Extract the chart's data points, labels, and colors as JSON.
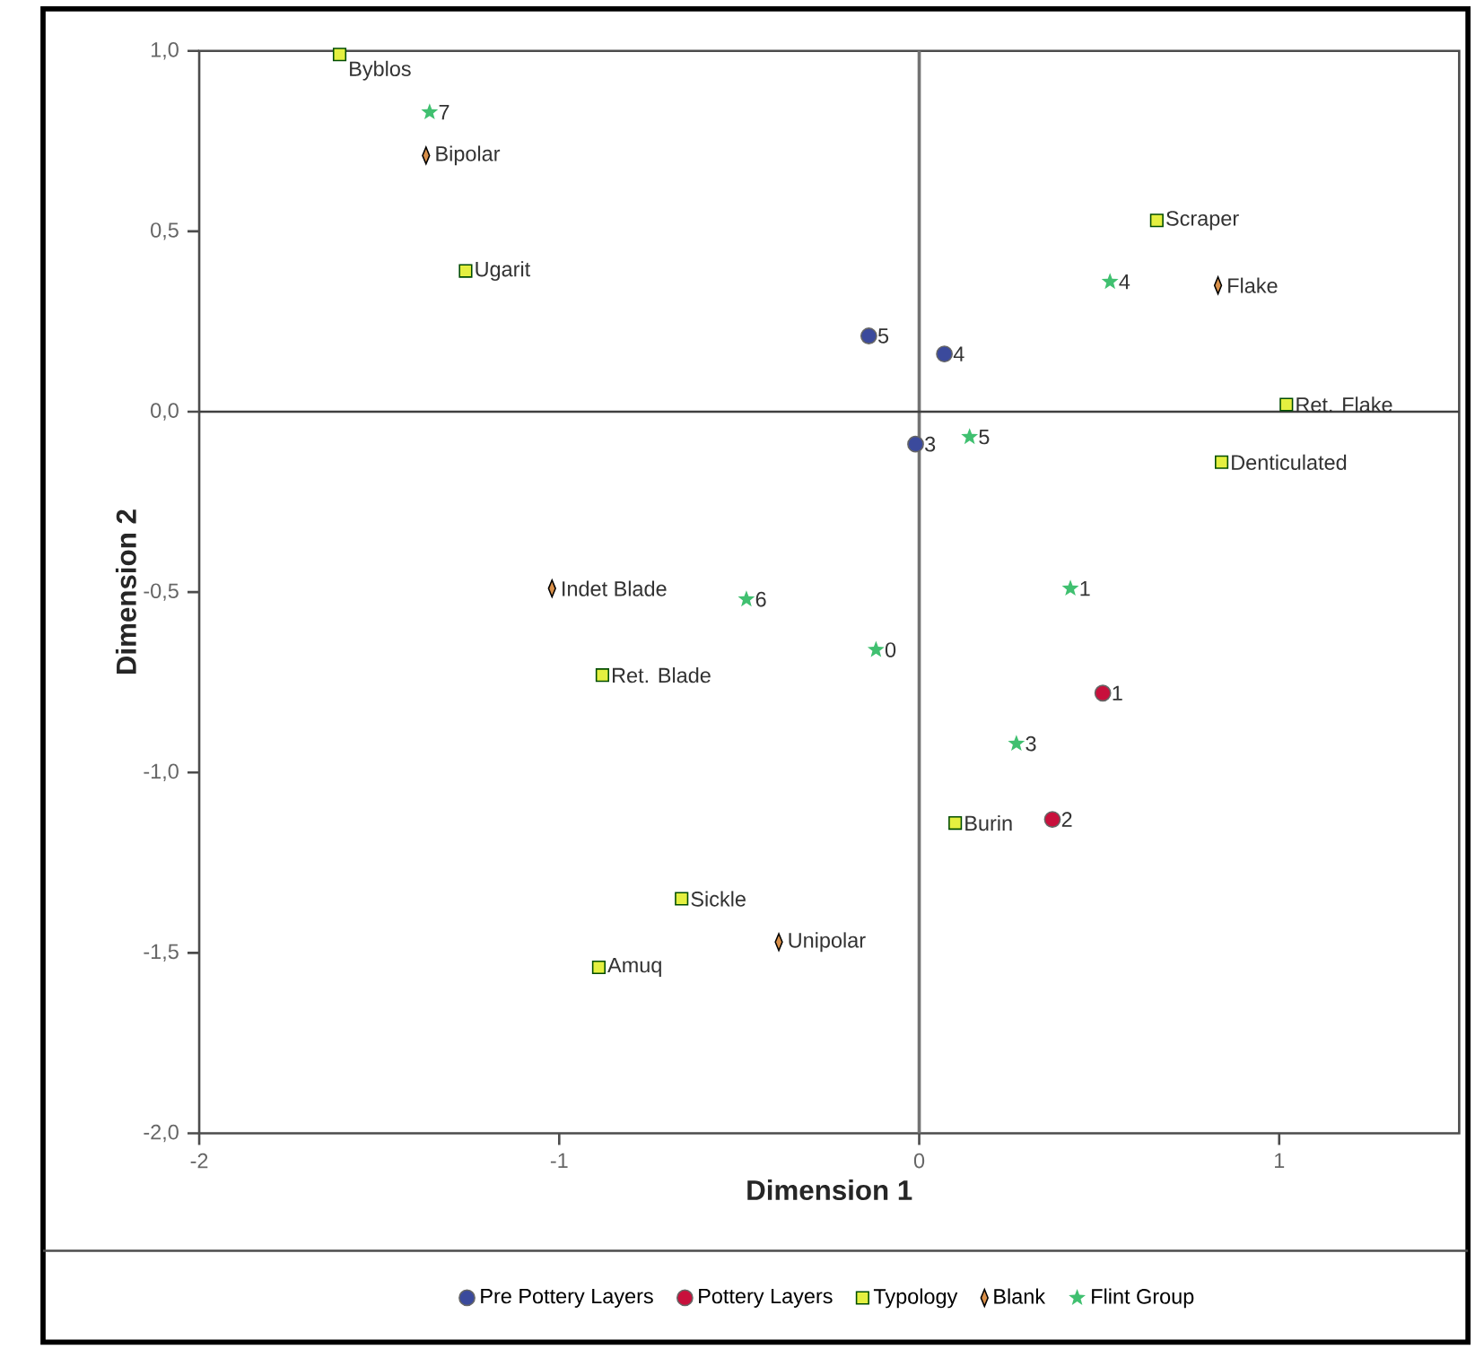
{
  "chart_data": {
    "type": "scatter",
    "xlabel": "Dimension 1",
    "ylabel": "Dimension 2",
    "xlim": [
      -2,
      1.5
    ],
    "ylim": [
      -2,
      1
    ],
    "xticks": [
      -2,
      -1,
      0,
      1
    ],
    "yticks": [
      {
        "value": -2,
        "label": "-2,0"
      },
      {
        "value": -1.5,
        "label": "-1,5"
      },
      {
        "value": -1,
        "label": "-1,0"
      },
      {
        "value": -0.5,
        "label": "-0,5"
      },
      {
        "value": 0,
        "label": "0,0"
      },
      {
        "value": 0.5,
        "label": "0,5"
      },
      {
        "value": 1,
        "label": "1,0"
      }
    ],
    "grid": false,
    "legend": "bottom",
    "ref_lines": [
      {
        "axis": "x",
        "value": 0
      },
      {
        "axis": "y",
        "value": 0
      }
    ],
    "series": [
      {
        "name": "Pre Pottery Layers",
        "color": "#3b4a9c",
        "marker": "circle",
        "x": [
          -0.14,
          0.07,
          -0.01
        ],
        "values": [
          0.21,
          0.16,
          -0.09
        ]
      },
      {
        "name": "Pottery Layers",
        "color": "#c8103c",
        "marker": "circle",
        "x": [
          0.51,
          0.37
        ],
        "values": [
          -0.78,
          -1.13
        ]
      },
      {
        "name": "Typology",
        "color": "#e4f040",
        "marker": "square",
        "x": [
          -1.61,
          -1.26,
          0.66,
          1.02,
          0.84,
          -0.88,
          -0.66,
          -0.89,
          0.1
        ],
        "values": [
          0.99,
          0.39,
          0.53,
          0.02,
          -0.14,
          -0.73,
          -1.35,
          -1.54,
          -1.14
        ]
      },
      {
        "name": "Blank",
        "color": "#d9904a",
        "marker": "diamond",
        "x": [
          -1.37,
          0.83,
          -1.02,
          -0.39
        ],
        "values": [
          0.71,
          0.35,
          -0.49,
          -1.47
        ]
      },
      {
        "name": "Flint Group",
        "color": "#40c070",
        "marker": "star",
        "x": [
          -1.36,
          0.53,
          0.14,
          -0.48,
          -0.12,
          0.42,
          0.27
        ],
        "values": [
          0.83,
          0.36,
          -0.07,
          -0.52,
          -0.66,
          -0.49,
          -0.92
        ]
      }
    ],
    "annotations": [
      {
        "text": "5",
        "x": -0.14,
        "y": 0.21
      },
      {
        "text": "4",
        "x": 0.07,
        "y": 0.16
      },
      {
        "text": "3",
        "x": -0.01,
        "y": -0.09
      },
      {
        "text": "1",
        "x": 0.51,
        "y": -0.78
      },
      {
        "text": "2",
        "x": 0.37,
        "y": -1.13
      },
      {
        "text": "Byblos",
        "x": -1.61,
        "y": 0.99
      },
      {
        "text": "Ugarit",
        "x": -1.26,
        "y": 0.39
      },
      {
        "text": "Scraper",
        "x": 0.66,
        "y": 0.53
      },
      {
        "text": "Ret. Flake",
        "x": 1.02,
        "y": 0.02
      },
      {
        "text": "Denticulated",
        "x": 0.84,
        "y": -0.14
      },
      {
        "text": "Ret. Blade",
        "x": -0.88,
        "y": -0.73
      },
      {
        "text": "Sickle",
        "x": -0.66,
        "y": -1.35
      },
      {
        "text": "Amuq",
        "x": -0.89,
        "y": -1.54
      },
      {
        "text": "Burin",
        "x": 0.1,
        "y": -1.14
      },
      {
        "text": "Bipolar",
        "x": -1.37,
        "y": 0.71
      },
      {
        "text": "Flake",
        "x": 0.83,
        "y": 0.35
      },
      {
        "text": "Indet Blade",
        "x": -1.02,
        "y": -0.49
      },
      {
        "text": "Unipolar",
        "x": -0.39,
        "y": -1.47
      },
      {
        "text": "7",
        "x": -1.36,
        "y": 0.83
      },
      {
        "text": "4",
        "x": 0.53,
        "y": 0.36
      },
      {
        "text": "5",
        "x": 0.14,
        "y": -0.07
      },
      {
        "text": "6",
        "x": -0.48,
        "y": -0.52
      },
      {
        "text": "0",
        "x": -0.12,
        "y": -0.66
      },
      {
        "text": "1",
        "x": 0.42,
        "y": -0.49
      },
      {
        "text": "3",
        "x": 0.27,
        "y": -0.92
      }
    ]
  }
}
